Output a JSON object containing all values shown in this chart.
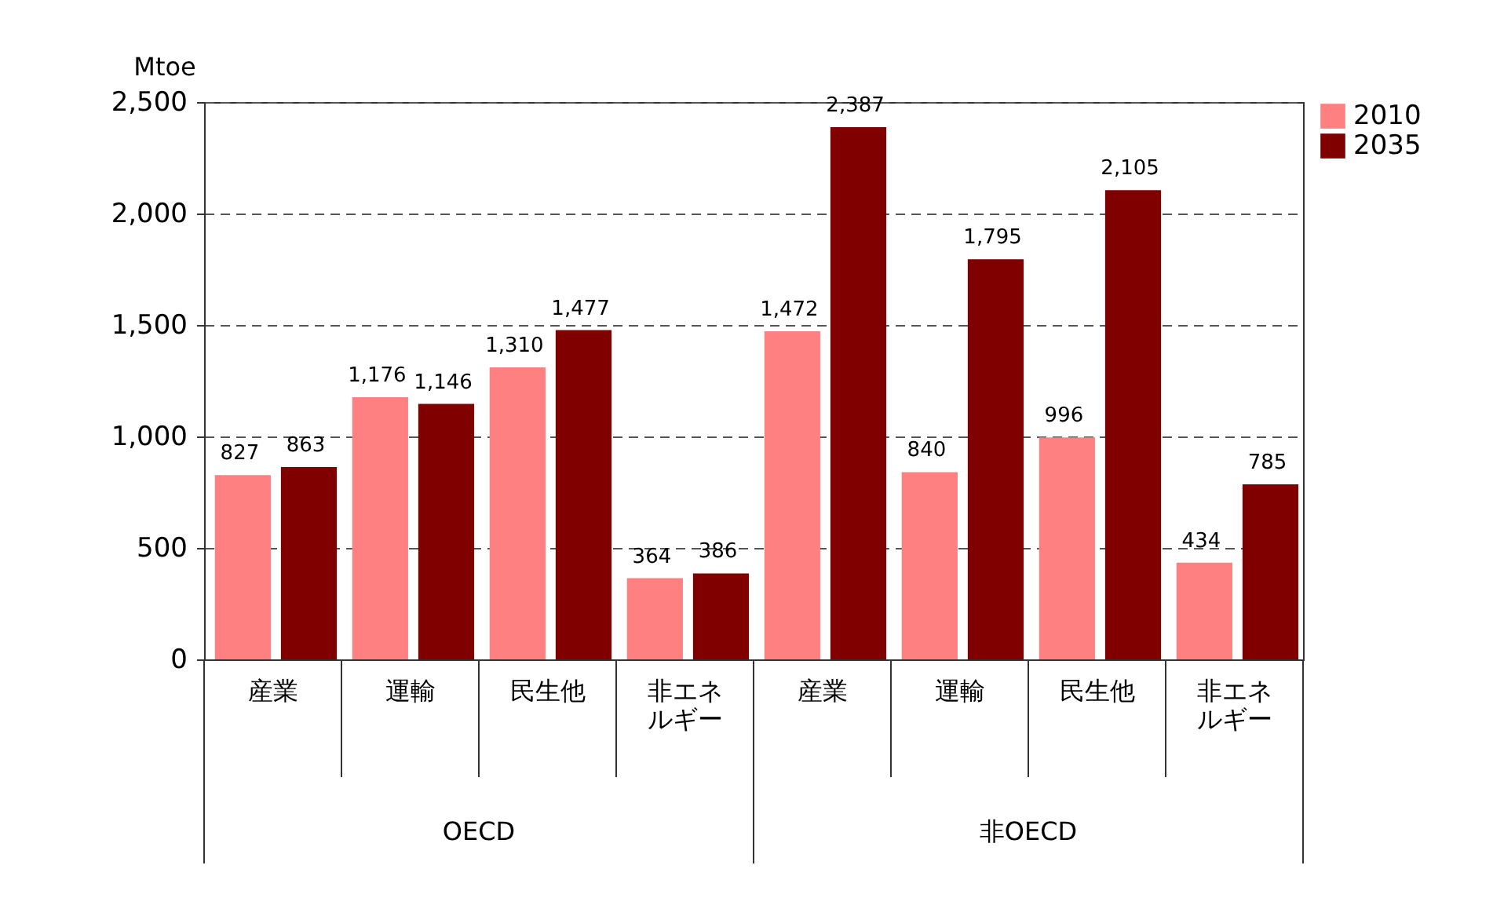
{
  "chart_data": {
    "type": "bar",
    "ylabel": "Mtoe",
    "categories": [
      "産業",
      "運輸",
      "民生他",
      "非エネルギー",
      "産業",
      "運輸",
      "民生他",
      "非エネルギー"
    ],
    "series": [
      {
        "name": "2010",
        "color": "#ff8080",
        "values": [
          827,
          1176,
          1310,
          364,
          1472,
          840,
          996,
          434
        ],
        "value_labels": [
          "827",
          "1,176",
          "1,310",
          "364",
          "1,472",
          "840",
          "996",
          "434"
        ]
      },
      {
        "name": "2035",
        "color": "#800000",
        "values": [
          863,
          1146,
          1477,
          386,
          2387,
          1795,
          2105,
          785
        ],
        "value_labels": [
          "863",
          "1,146",
          "1,477",
          "386",
          "2,387",
          "1,795",
          "2,105",
          "785"
        ]
      }
    ],
    "ylim": [
      0,
      2500
    ],
    "yticks": [
      0,
      {
        "value": 500,
        "label": "500"
      },
      {
        "value": 1000,
        "label": "1,000"
      },
      {
        "value": 1500,
        "label": "1,500"
      },
      {
        "value": 2000,
        "label": "2,000"
      },
      {
        "value": 2500,
        "label": "2,500"
      }
    ],
    "grid": "y",
    "legend": "right",
    "annotations": [
      "OECD",
      "非OECD"
    ]
  }
}
